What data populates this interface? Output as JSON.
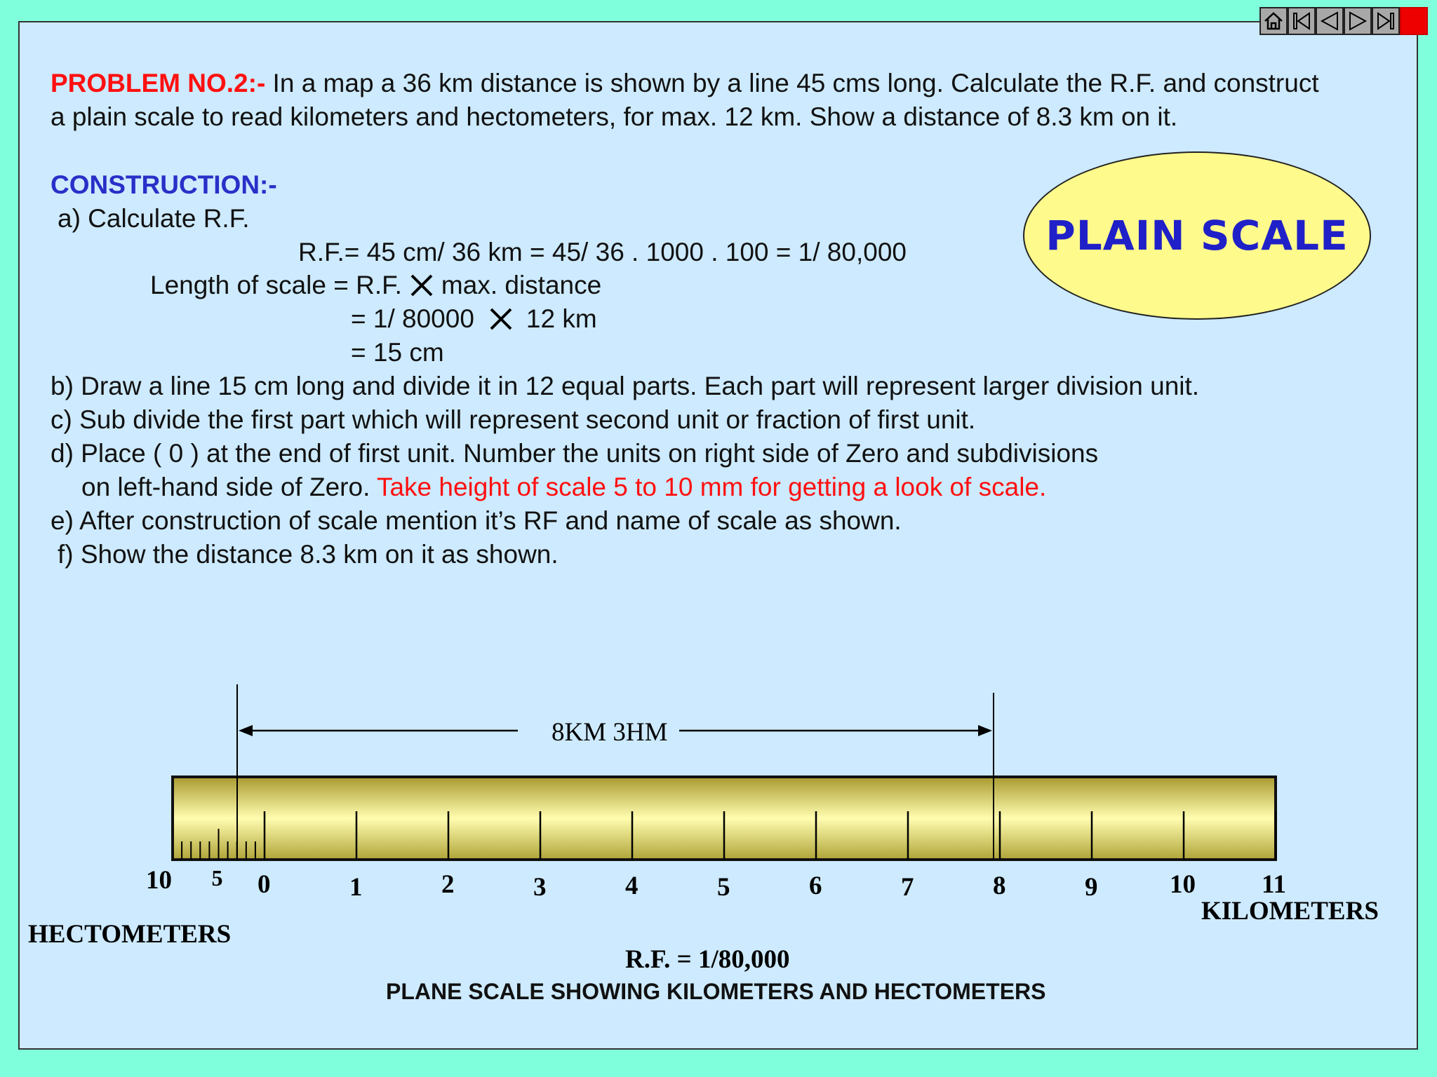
{
  "nav": {
    "buttons": [
      {
        "name": "home-icon"
      },
      {
        "name": "first-icon"
      },
      {
        "name": "prev-icon"
      },
      {
        "name": "next-icon"
      },
      {
        "name": "last-icon"
      },
      {
        "name": "exit-icon"
      }
    ]
  },
  "problem": {
    "label": "PROBLEM NO.2:-",
    "text1": " In a map a 36 km distance is shown by a line 45 cms long. Calculate the R.F. and construct",
    "text2": "a plain scale to read kilometers and hectometers, for max. 12 km. Show a distance of 8.3 km on it."
  },
  "badge": "PLAIN SCALE",
  "construction": {
    "heading": "CONSTRUCTION:-",
    "a": "a) Calculate R.F.",
    "rf_line": "R.F.= 45 cm/ 36 km = 45/ 36 . 1000 . 100 = 1/ 80,000",
    "len1_pre": "Length of scale = R.F.",
    "len1_post": "max. distance",
    "len2_pre": "= 1/ 80000",
    "len2_post": "12 km",
    "len3": "= 15 cm",
    "b": "b) Draw a line 15 cm long and divide it in 12 equal parts. Each part will represent larger division unit.",
    "c": "c) Sub divide the first part which will represent second unit or fraction of first unit.",
    "d1": "d) Place ( 0 ) at the end of first unit. Number the units on right side of Zero and subdivisions",
    "d2_black": "on left-hand side of Zero. ",
    "d2_red": "Take height of scale 5 to 10 mm for getting a look of scale.",
    "e": "e) After construction of scale mention it’s RF and name of scale as shown.",
    "f": "f) Show the distance 8.3 km on it as shown."
  },
  "scale": {
    "measure_label": "8KM  3HM",
    "hecto_labels": [
      "10",
      "5"
    ],
    "km_labels": [
      "0",
      "1",
      "2",
      "3",
      "4",
      "5",
      "6",
      "7",
      "8",
      "9",
      "10",
      "11"
    ],
    "units_right": "KILOMETERS",
    "units_left": "HECTOMETERS",
    "rf": "R.F. = 1/80,000",
    "caption": "PLANE SCALE SHOWING KILOMETERS AND HECTOMETERS",
    "bar_fill": "#e6e08a"
  }
}
